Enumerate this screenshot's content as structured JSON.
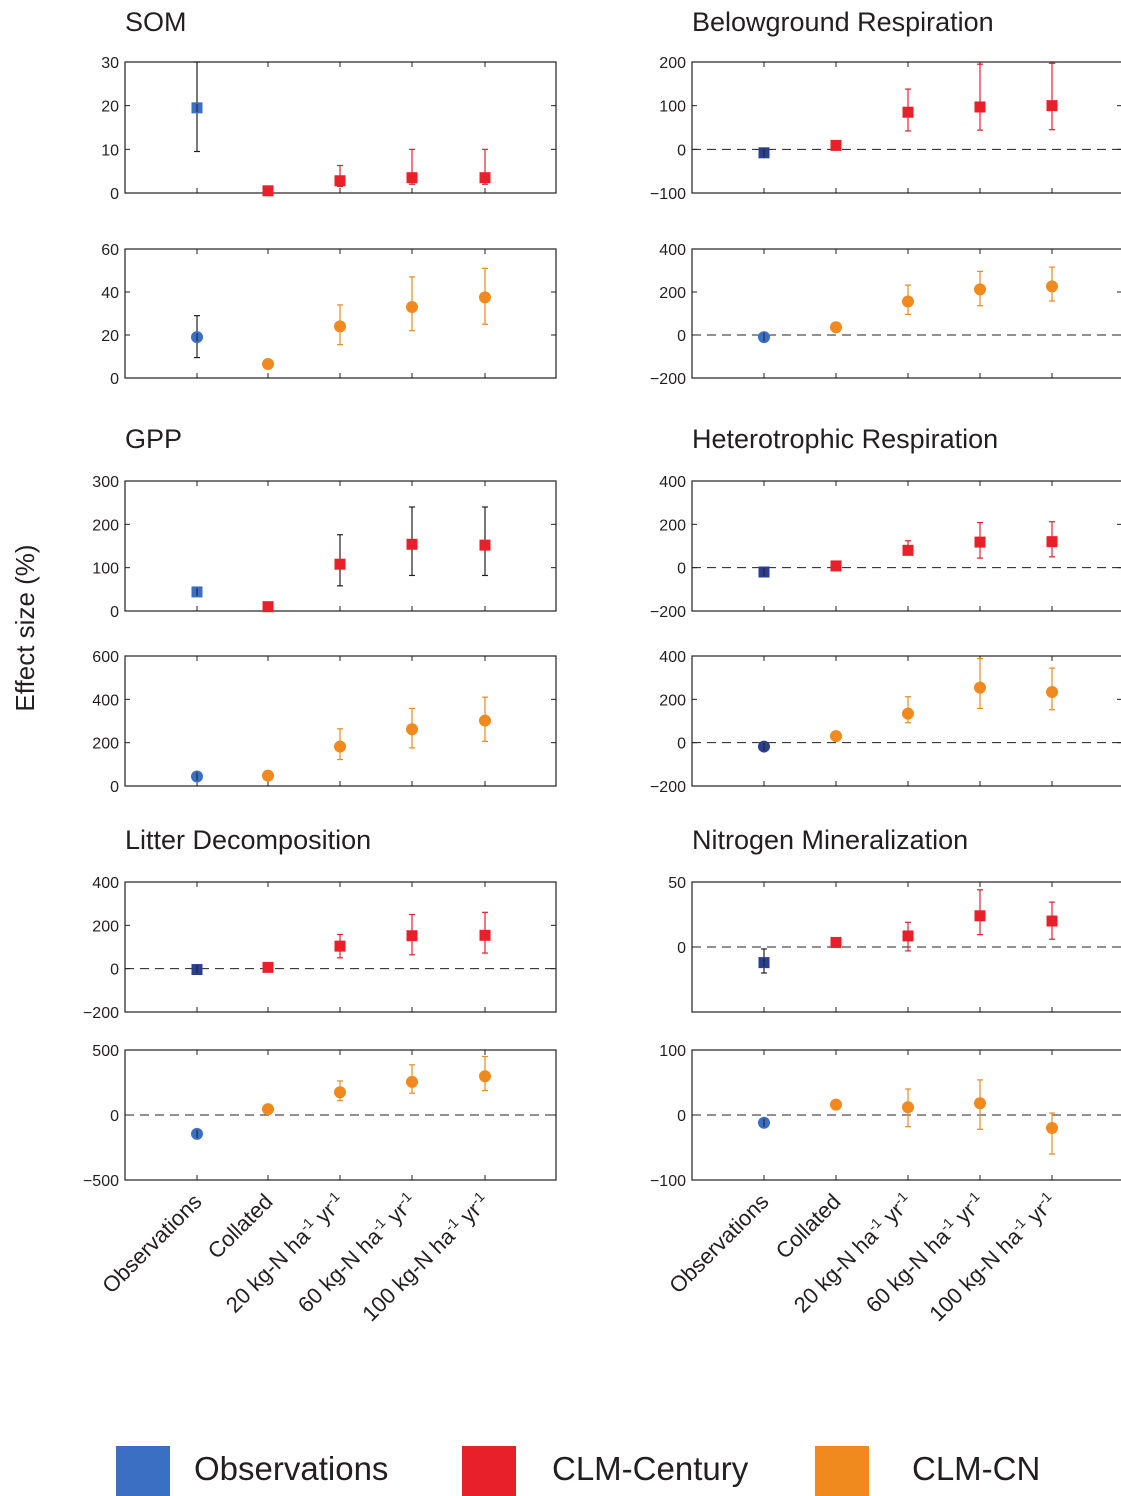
{
  "figure": {
    "ylabel": "Effect size (%)",
    "colors": {
      "obs_square": "#3a6fc4",
      "obs_circle": "#3a6fc4",
      "obs_dark": "#2b3f8f",
      "century": "#e8202a",
      "cn": "#f0891e",
      "axis": "#231f20"
    }
  },
  "chart_data": [
    {
      "type": "scatter",
      "title": "SOM",
      "categories": [
        "Observations",
        "Collated",
        "20 kg-N ha-1 yr-1",
        "60 kg-N ha-1 yr-1",
        "100 kg-N ha-1 yr-1"
      ],
      "ylim": [
        0,
        30
      ],
      "yticks": [
        0,
        10,
        20,
        30
      ],
      "zero_line": false,
      "series": [
        {
          "values": [
            19.5,
            0.5,
            2.8,
            3.5,
            3.5
          ],
          "err_low": [
            9.5,
            0.5,
            1.5,
            2,
            2
          ],
          "err_high": [
            30,
            0.5,
            6.3,
            10,
            10
          ],
          "marker": "square",
          "colors": [
            "obs_square",
            "century",
            "century",
            "century",
            "century"
          ],
          "err_colors": [
            "axis",
            "century",
            "century",
            "century",
            "century"
          ]
        }
      ]
    },
    {
      "type": "scatter",
      "title": "",
      "categories": [
        "Observations",
        "Collated",
        "20 kg-N ha-1 yr-1",
        "60 kg-N ha-1 yr-1",
        "100 kg-N ha-1 yr-1"
      ],
      "ylim": [
        0,
        60
      ],
      "yticks": [
        0,
        20,
        40,
        60
      ],
      "zero_line": false,
      "series": [
        {
          "values": [
            19,
            6.5,
            24,
            33,
            37.5
          ],
          "err_low": [
            9.5,
            6.5,
            15.5,
            22,
            25
          ],
          "err_high": [
            29,
            6.5,
            34,
            47,
            51
          ],
          "marker": "circle",
          "colors": [
            "obs_circle",
            "cn",
            "cn",
            "cn",
            "cn"
          ],
          "err_colors": [
            "axis",
            "cn",
            "cn",
            "cn",
            "cn"
          ]
        }
      ]
    },
    {
      "type": "scatter",
      "title": "Belowground Respiration",
      "categories": [
        "Observations",
        "Collated",
        "20 kg-N ha-1 yr-1",
        "60 kg-N ha-1 yr-1",
        "100 kg-N ha-1 yr-1"
      ],
      "ylim": [
        -100,
        200
      ],
      "yticks": [
        -100,
        0,
        100,
        200
      ],
      "zero_line": true,
      "series": [
        {
          "values": [
            -8,
            9,
            85,
            97,
            100
          ],
          "err_low": [
            -12,
            9,
            42,
            44,
            45
          ],
          "err_high": [
            -4,
            9,
            138,
            195,
            197
          ],
          "marker": "square",
          "colors": [
            "obs_dark",
            "century",
            "century",
            "century",
            "century"
          ],
          "err_colors": [
            "axis",
            "century",
            "century",
            "century",
            "century"
          ]
        }
      ]
    },
    {
      "type": "scatter",
      "title": "",
      "categories": [
        "Observations",
        "Collated",
        "20 kg-N ha-1 yr-1",
        "60 kg-N ha-1 yr-1",
        "100 kg-N ha-1 yr-1"
      ],
      "ylim": [
        -200,
        400
      ],
      "yticks": [
        -200,
        0,
        200,
        400
      ],
      "zero_line": true,
      "series": [
        {
          "values": [
            -10,
            36,
            156,
            212,
            226
          ],
          "err_low": [
            -18,
            36,
            96,
            136,
            158
          ],
          "err_high": [
            -2,
            36,
            232,
            296,
            316
          ],
          "marker": "circle",
          "colors": [
            "obs_circle",
            "cn",
            "cn",
            "cn",
            "cn"
          ],
          "err_colors": [
            "axis",
            "cn",
            "cn",
            "cn",
            "cn"
          ]
        }
      ]
    },
    {
      "type": "scatter",
      "title": "GPP",
      "categories": [
        "Observations",
        "Collated",
        "20 kg-N ha-1 yr-1",
        "60 kg-N ha-1 yr-1",
        "100 kg-N ha-1 yr-1"
      ],
      "ylim": [
        0,
        300
      ],
      "yticks": [
        0,
        100,
        200,
        300
      ],
      "zero_line": false,
      "series": [
        {
          "values": [
            44,
            10,
            108,
            154,
            152
          ],
          "err_low": [
            36,
            10,
            58,
            82,
            82
          ],
          "err_high": [
            52,
            10,
            176,
            240,
            240
          ],
          "marker": "square",
          "colors": [
            "obs_square",
            "century",
            "century",
            "century",
            "century"
          ],
          "err_colors": [
            "axis",
            "century",
            "axis",
            "axis",
            "axis"
          ]
        }
      ]
    },
    {
      "type": "scatter",
      "title": "",
      "categories": [
        "Observations",
        "Collated",
        "20 kg-N ha-1 yr-1",
        "60 kg-N ha-1 yr-1",
        "100 kg-N ha-1 yr-1"
      ],
      "ylim": [
        0,
        600
      ],
      "yticks": [
        0,
        200,
        400,
        600
      ],
      "zero_line": false,
      "series": [
        {
          "values": [
            44,
            48,
            182,
            262,
            302
          ],
          "err_low": [
            34,
            48,
            122,
            176,
            206
          ],
          "err_high": [
            54,
            48,
            264,
            358,
            410
          ],
          "marker": "circle",
          "colors": [
            "obs_circle",
            "cn",
            "cn",
            "cn",
            "cn"
          ],
          "err_colors": [
            "axis",
            "cn",
            "cn",
            "cn",
            "cn"
          ]
        }
      ]
    },
    {
      "type": "scatter",
      "title": "Heterotrophic Respiration",
      "categories": [
        "Observations",
        "Collated",
        "20 kg-N ha-1 yr-1",
        "60 kg-N ha-1 yr-1",
        "100 kg-N ha-1 yr-1"
      ],
      "ylim": [
        -200,
        400
      ],
      "yticks": [
        -200,
        0,
        200,
        400
      ],
      "zero_line": true,
      "series": [
        {
          "values": [
            -20,
            8,
            80,
            118,
            120
          ],
          "err_low": [
            -32,
            8,
            60,
            44,
            50
          ],
          "err_high": [
            -8,
            8,
            124,
            208,
            212
          ],
          "marker": "square",
          "colors": [
            "obs_dark",
            "century",
            "century",
            "century",
            "century"
          ],
          "err_colors": [
            "axis",
            "century",
            "century",
            "century",
            "century"
          ]
        }
      ]
    },
    {
      "type": "scatter",
      "title": "",
      "categories": [
        "Observations",
        "Collated",
        "20 kg-N ha-1 yr-1",
        "60 kg-N ha-1 yr-1",
        "100 kg-N ha-1 yr-1"
      ],
      "ylim": [
        -200,
        400
      ],
      "yticks": [
        -200,
        0,
        200,
        400
      ],
      "zero_line": true,
      "series": [
        {
          "values": [
            -18,
            30,
            134,
            254,
            234
          ],
          "err_low": [
            -28,
            30,
            92,
            158,
            152
          ],
          "err_high": [
            -8,
            30,
            212,
            388,
            344
          ],
          "marker": "circle",
          "colors": [
            "obs_dark",
            "cn",
            "cn",
            "cn",
            "cn"
          ],
          "err_colors": [
            "axis",
            "cn",
            "cn",
            "cn",
            "cn"
          ]
        }
      ]
    },
    {
      "type": "scatter",
      "title": "Litter Decomposition",
      "categories": [
        "Observations",
        "Collated",
        "20 kg-N ha-1 yr-1",
        "60 kg-N ha-1 yr-1",
        "100 kg-N ha-1 yr-1"
      ],
      "ylim": [
        -200,
        400
      ],
      "yticks": [
        -200,
        0,
        200,
        400
      ],
      "zero_line": true,
      "series": [
        {
          "values": [
            -4,
            6,
            104,
            152,
            154
          ],
          "err_low": [
            -10,
            6,
            50,
            64,
            72
          ],
          "err_high": [
            2,
            6,
            158,
            250,
            260
          ],
          "marker": "square",
          "colors": [
            "obs_dark",
            "century",
            "century",
            "century",
            "century"
          ],
          "err_colors": [
            "axis",
            "century",
            "century",
            "century",
            "century"
          ]
        }
      ]
    },
    {
      "type": "scatter",
      "title": "",
      "categories": [
        "Observations",
        "Collated",
        "20 kg-N ha-1 yr-1",
        "60 kg-N ha-1 yr-1",
        "100 kg-N ha-1 yr-1"
      ],
      "ylim": [
        -500,
        500
      ],
      "yticks": [
        -500,
        0,
        500
      ],
      "zero_line": true,
      "series": [
        {
          "values": [
            -145,
            45,
            175,
            255,
            298
          ],
          "err_low": [
            -155,
            45,
            110,
            168,
            188
          ],
          "err_high": [
            -135,
            45,
            262,
            386,
            450
          ],
          "marker": "circle",
          "colors": [
            "obs_circle",
            "cn",
            "cn",
            "cn",
            "cn"
          ],
          "err_colors": [
            "axis",
            "cn",
            "cn",
            "cn",
            "cn"
          ]
        }
      ]
    },
    {
      "type": "scatter",
      "title": "Nitrogen Mineralization",
      "categories": [
        "Observations",
        "Collated",
        "20 kg-N ha-1 yr-1",
        "60 kg-N ha-1 yr-1",
        "100 kg-N ha-1 yr-1"
      ],
      "ylim": [
        -50,
        50
      ],
      "yticks": [
        0,
        50
      ],
      "zero_line": true,
      "series": [
        {
          "values": [
            -12,
            3.5,
            8.5,
            24,
            20
          ],
          "err_low": [
            -20,
            3.5,
            -3,
            9.5,
            6
          ],
          "err_high": [
            -1.5,
            3.5,
            19,
            44,
            34.5
          ],
          "marker": "square",
          "colors": [
            "obs_dark",
            "century",
            "century",
            "century",
            "century"
          ],
          "err_colors": [
            "axis",
            "century",
            "century",
            "century",
            "century"
          ]
        }
      ]
    },
    {
      "type": "scatter",
      "title": "",
      "categories": [
        "Observations",
        "Collated",
        "20 kg-N ha-1 yr-1",
        "60 kg-N ha-1 yr-1",
        "100 kg-N ha-1 yr-1"
      ],
      "ylim": [
        -100,
        100
      ],
      "yticks": [
        -100,
        0,
        100
      ],
      "zero_line": true,
      "series": [
        {
          "values": [
            -12,
            16,
            12,
            18,
            -20
          ],
          "err_low": [
            -18,
            9,
            -18,
            -22,
            -60
          ],
          "err_high": [
            -6,
            23,
            40,
            54,
            3
          ],
          "marker": "circle",
          "colors": [
            "obs_circle",
            "cn",
            "cn",
            "cn",
            "cn"
          ],
          "err_colors": [
            "axis",
            "cn",
            "cn",
            "cn",
            "cn"
          ]
        }
      ]
    }
  ],
  "x_tick_labels": [
    {
      "main": "Observations"
    },
    {
      "main": "Collated"
    },
    {
      "prefix": "20 kg-N ha",
      "sup1": "-1",
      "mid": " yr",
      "sup2": "-1"
    },
    {
      "prefix": "60 kg-N ha",
      "sup1": "-1",
      "mid": " yr",
      "sup2": "-1"
    },
    {
      "prefix": "100 kg-N ha",
      "sup1": "-1",
      "mid": " yr",
      "sup2": "-1"
    }
  ],
  "legend": {
    "items": [
      {
        "label": "Observations",
        "color": "#3a6fc4"
      },
      {
        "label": "CLM-Century",
        "color": "#e8202a"
      },
      {
        "label": "CLM-CN",
        "color": "#f0891e"
      }
    ]
  }
}
